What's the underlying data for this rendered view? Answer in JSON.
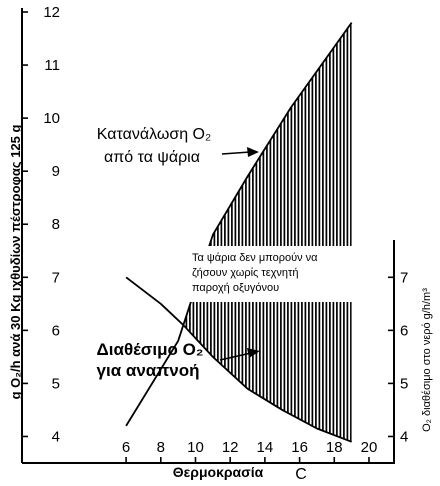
{
  "chart_data": {
    "type": "area",
    "title": "",
    "xlabel": "Θερμοκρασία",
    "xunit": "C",
    "ylabel_left": "g O₂/h  ανά 30 Kg ιχθυδίων πέστροφας 125 g",
    "ylabel_right": "O₂ διαθέσιμο στο νερό g/h/m³",
    "x_ticks": [
      6,
      8,
      10,
      12,
      14,
      16,
      18,
      20
    ],
    "y_left_ticks": [
      4,
      5,
      6,
      7,
      8,
      9,
      10,
      11,
      12
    ],
    "y_right_ticks": [
      4,
      5,
      6,
      7
    ],
    "xlim": [
      0,
      21.5
    ],
    "ylim_left": [
      3.5,
      12
    ],
    "series": [
      {
        "name": "Κατανάλωση O₂ από τα ψάρια",
        "x": [
          6,
          9,
          11,
          13,
          15.5,
          19
        ],
        "y": [
          4.2,
          5.8,
          7.8,
          8.9,
          10.2,
          11.8
        ]
      },
      {
        "name": "Διαθέσιμο O₂ για αναπνοή",
        "x": [
          6,
          8,
          9.3,
          11,
          13,
          15,
          17,
          19
        ],
        "y": [
          7.0,
          6.5,
          6.1,
          5.5,
          4.9,
          4.5,
          4.15,
          3.9
        ]
      }
    ],
    "annotations": [
      {
        "label": "consumption",
        "lines": [
          "Κατανάλωση O₂",
          "από τα ψάρια"
        ]
      },
      {
        "label": "available",
        "lines": [
          "Διαθέσιμο O₂",
          "για αναπνοή"
        ]
      },
      {
        "label": "shaded-region",
        "lines": [
          "Τα ψάρια δεν μπορούν να",
          "ζήσουν χωρίς τεχνητή",
          "παροχή οξυγόνου"
        ]
      }
    ],
    "shaded_region": "between curves where consumption exceeds available O₂"
  }
}
